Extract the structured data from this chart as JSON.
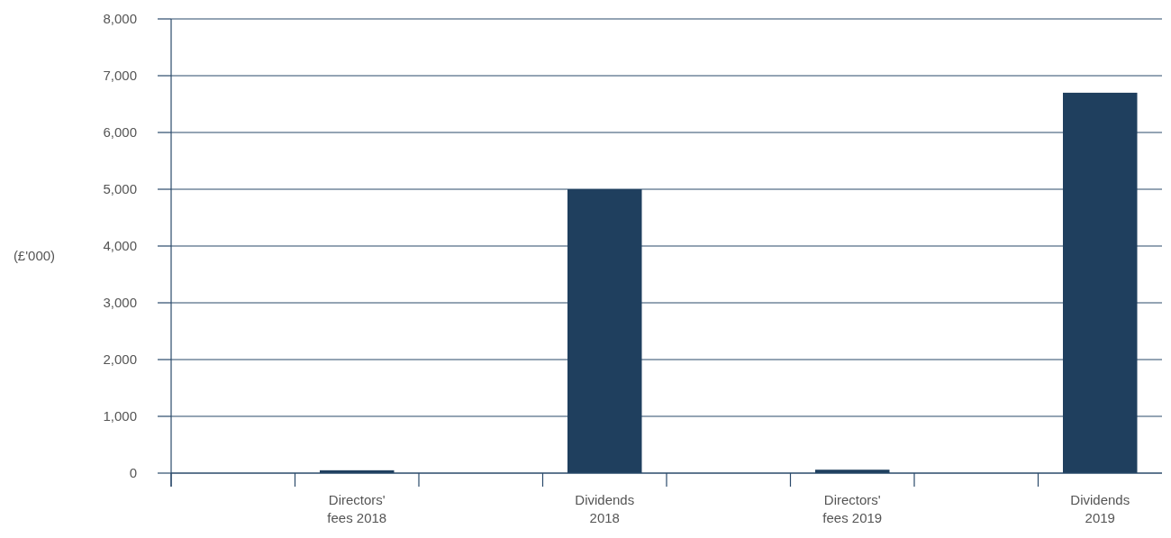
{
  "chart_data": {
    "type": "bar",
    "ylabel": "(£'000)",
    "categories": [
      null,
      "Directors' fees 2018",
      null,
      "Dividends 2018",
      null,
      "Directors' fees 2019",
      null,
      "Dividends 2019"
    ],
    "values": [
      null,
      50,
      null,
      5000,
      null,
      60,
      null,
      6700
    ],
    "color": "#1f3f5e",
    "ylim": [
      0,
      8000
    ],
    "yticks": [
      {
        "value": 0,
        "label": "0"
      },
      {
        "value": 1000,
        "label": "1,000"
      },
      {
        "value": 2000,
        "label": "2,000"
      },
      {
        "value": 3000,
        "label": "3,000"
      },
      {
        "value": 4000,
        "label": "4,000"
      },
      {
        "value": 5000,
        "label": "5,000"
      },
      {
        "value": 6000,
        "label": "6,000"
      },
      {
        "value": 7000,
        "label": "7,000"
      },
      {
        "value": 8000,
        "label": "8,000"
      }
    ],
    "grid": "y"
  }
}
